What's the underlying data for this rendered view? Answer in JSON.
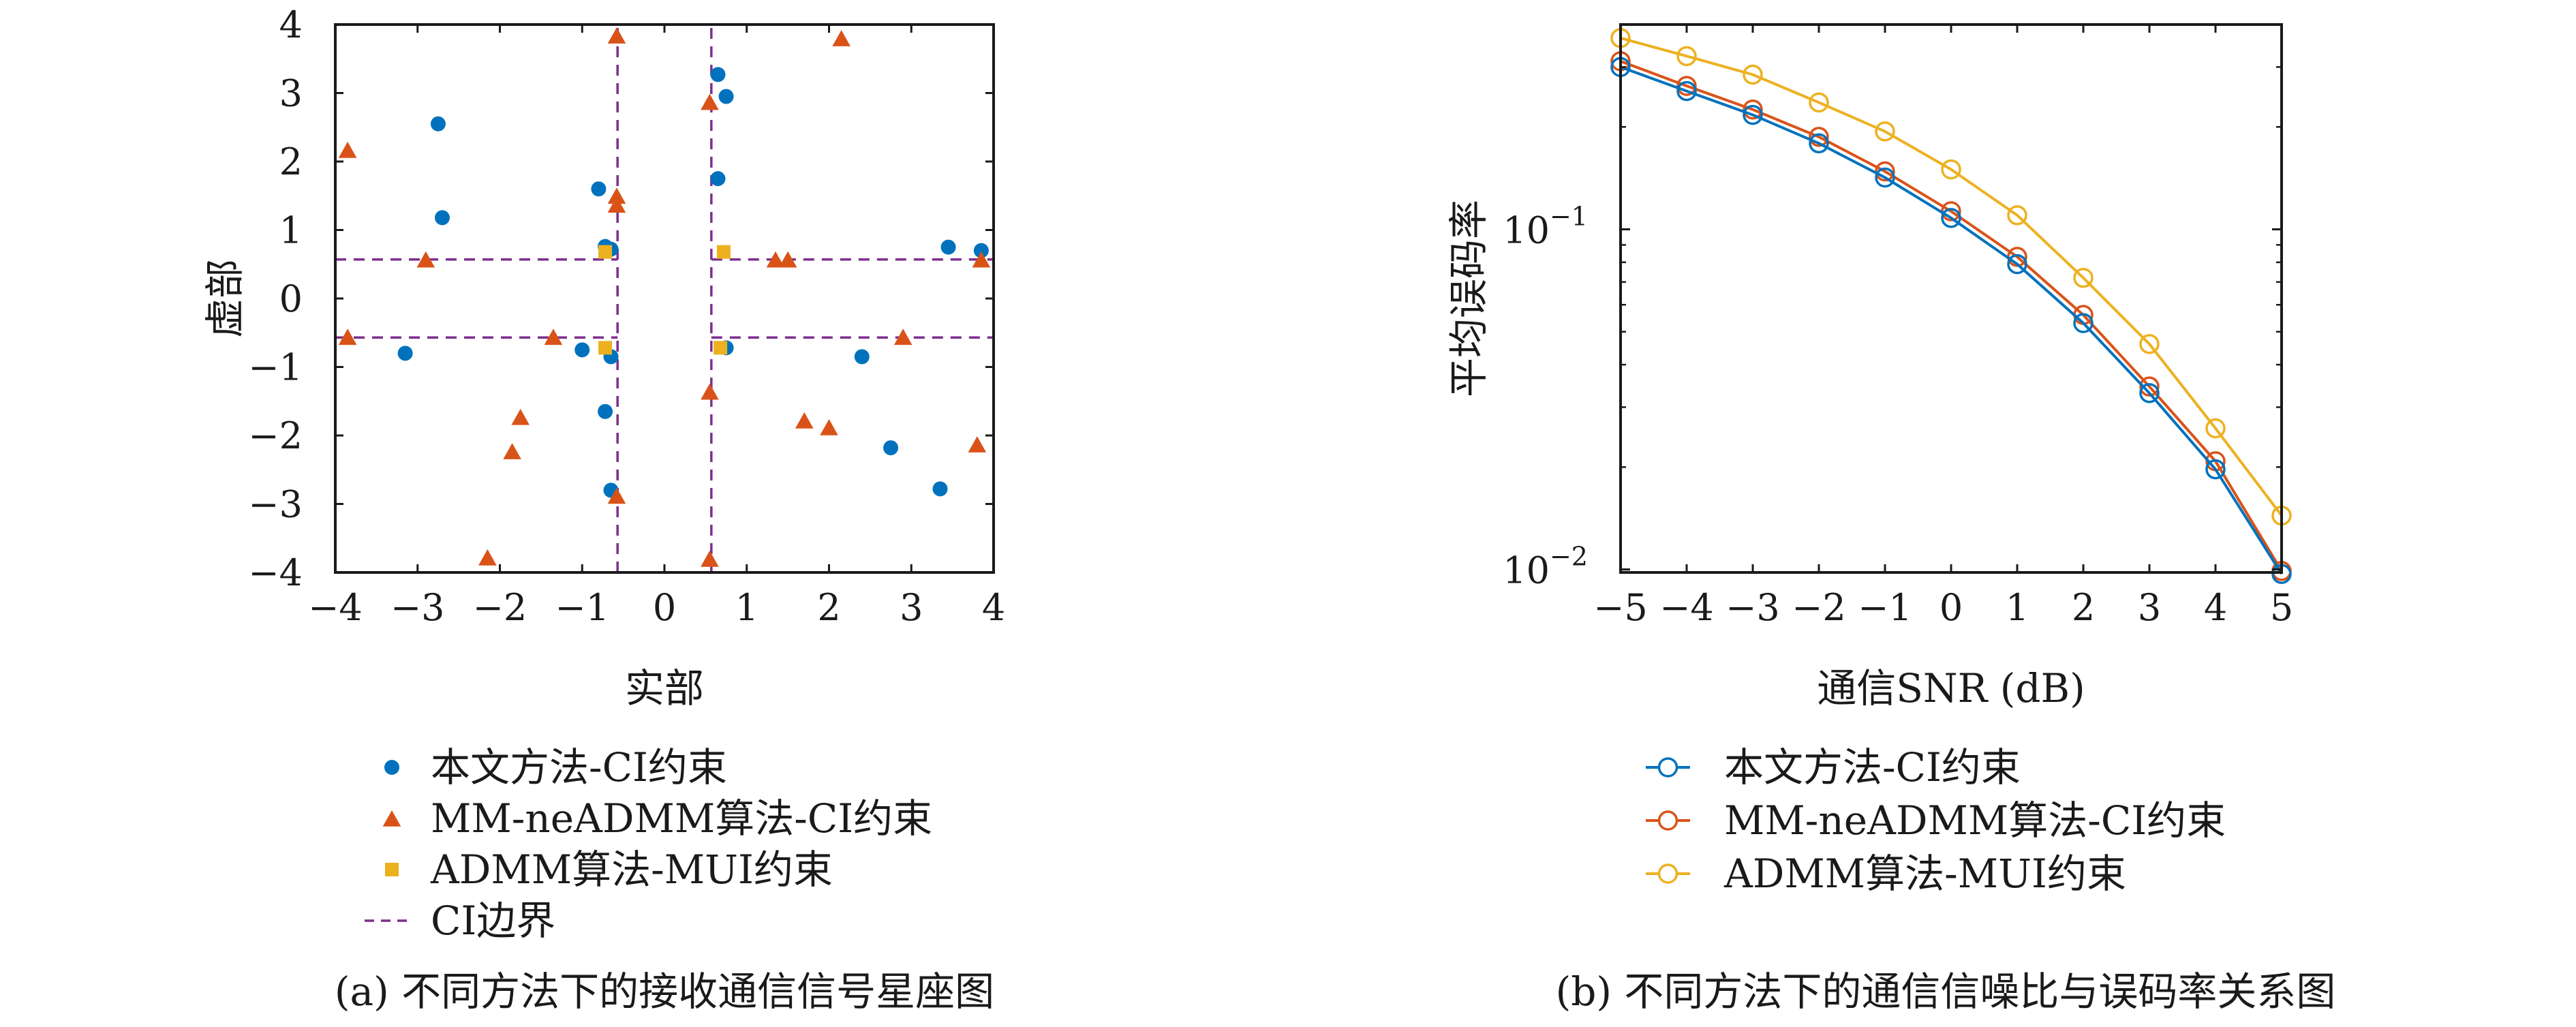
{
  "chart_data": [
    {
      "type": "scatter",
      "xlabel": "实部",
      "ylabel": "虚部",
      "xlim": [
        -4,
        4
      ],
      "ylim": [
        -4,
        4
      ],
      "xticks": [
        -4,
        -3,
        -2,
        -1,
        0,
        1,
        2,
        3,
        4
      ],
      "yticks": [
        -4,
        -3,
        -2,
        -1,
        0,
        1,
        2,
        3,
        4
      ],
      "grid": false,
      "legend_position": "below",
      "caption": "(a) 不同方法下的接收通信信号星座图",
      "series": [
        {
          "name": "本文方法-CI约束",
          "marker": "circle",
          "color": "#0072BD",
          "points": [
            [
              -2.75,
              2.55
            ],
            [
              -2.7,
              1.18
            ],
            [
              -0.8,
              1.6
            ],
            [
              -0.72,
              0.76
            ],
            [
              -0.65,
              0.72
            ],
            [
              0.65,
              3.27
            ],
            [
              0.75,
              2.95
            ],
            [
              0.65,
              1.75
            ],
            [
              3.45,
              0.75
            ],
            [
              3.85,
              0.7
            ],
            [
              -3.15,
              -0.8
            ],
            [
              -1.0,
              -0.75
            ],
            [
              -0.65,
              -0.85
            ],
            [
              -0.72,
              -1.65
            ],
            [
              -0.65,
              -2.8
            ],
            [
              0.75,
              -0.72
            ],
            [
              2.4,
              -0.85
            ],
            [
              2.75,
              -2.18
            ],
            [
              3.35,
              -2.78
            ]
          ]
        },
        {
          "name": "MM-neADMM算法-CI约束",
          "marker": "triangle",
          "color": "#D95319",
          "points": [
            [
              -3.85,
              2.15
            ],
            [
              -2.9,
              0.55
            ],
            [
              -0.58,
              3.82
            ],
            [
              -0.58,
              1.48
            ],
            [
              -0.58,
              1.35
            ],
            [
              0.55,
              2.85
            ],
            [
              2.15,
              3.78
            ],
            [
              1.35,
              0.55
            ],
            [
              1.5,
              0.55
            ],
            [
              3.85,
              0.55
            ],
            [
              -3.85,
              -0.58
            ],
            [
              -1.35,
              -0.58
            ],
            [
              -1.75,
              -1.75
            ],
            [
              -1.85,
              -2.25
            ],
            [
              -2.15,
              -3.8
            ],
            [
              -0.58,
              -2.9
            ],
            [
              0.55,
              -1.38
            ],
            [
              0.55,
              -3.82
            ],
            [
              1.7,
              -1.8
            ],
            [
              2.0,
              -1.9
            ],
            [
              2.9,
              -0.58
            ],
            [
              3.8,
              -2.15
            ]
          ]
        },
        {
          "name": "ADMM算法-MUI约束",
          "marker": "square",
          "color": "#EDB120",
          "points": [
            [
              -0.72,
              0.68
            ],
            [
              0.72,
              0.68
            ],
            [
              -0.72,
              -0.72
            ],
            [
              0.68,
              -0.72
            ]
          ]
        },
        {
          "name": "CI边界",
          "type": "dashed-line",
          "color": "#7E2F8E",
          "segments": [
            [
              [
                -0.57,
                -4
              ],
              [
                -0.57,
                4
              ]
            ],
            [
              [
                0.57,
                -4
              ],
              [
                0.57,
                4
              ]
            ],
            [
              [
                -4,
                0.57
              ],
              [
                -0.57,
                0.57
              ]
            ],
            [
              [
                0.57,
                0.57
              ],
              [
                4,
                0.57
              ]
            ],
            [
              [
                -4,
                -0.57
              ],
              [
                -0.57,
                -0.57
              ]
            ],
            [
              [
                0.57,
                -0.57
              ],
              [
                4,
                -0.57
              ]
            ]
          ]
        }
      ]
    },
    {
      "type": "line",
      "xlabel": "通信SNR (dB)",
      "ylabel": "平均误码率",
      "yscale": "log",
      "xlim": [
        -5,
        5
      ],
      "ylim": [
        0.0098,
        0.4
      ],
      "xticks": [
        -5,
        -4,
        -3,
        -2,
        -1,
        0,
        1,
        2,
        3,
        4,
        5
      ],
      "ytick_values": [
        0.01,
        0.1
      ],
      "ytick_labels": [
        {
          "base": "10",
          "exp": "−2"
        },
        {
          "base": "10",
          "exp": "−1"
        }
      ],
      "grid": false,
      "legend_position": "below",
      "caption": "(b) 不同方法下的通信信噪比与误码率关系图",
      "x": [
        -5,
        -4,
        -3,
        -2,
        -1,
        0,
        1,
        2,
        3,
        4,
        5
      ],
      "series": [
        {
          "name": "本文方法-CI约束",
          "color": "#0072BD",
          "marker": "circle",
          "values": [
            0.3,
            0.255,
            0.217,
            0.179,
            0.142,
            0.108,
            0.079,
            0.053,
            0.033,
            0.0197,
            0.0097
          ]
        },
        {
          "name": "MM-neADMM算法-CI约束",
          "color": "#D95319",
          "marker": "circle",
          "values": [
            0.312,
            0.264,
            0.225,
            0.187,
            0.148,
            0.113,
            0.083,
            0.056,
            0.0345,
            0.0208,
            0.0099
          ]
        },
        {
          "name": "ADMM算法-MUI约束",
          "color": "#EDB120",
          "marker": "circle",
          "values": [
            0.365,
            0.323,
            0.285,
            0.236,
            0.194,
            0.15,
            0.11,
            0.072,
            0.046,
            0.026,
            0.0144
          ]
        }
      ]
    }
  ]
}
